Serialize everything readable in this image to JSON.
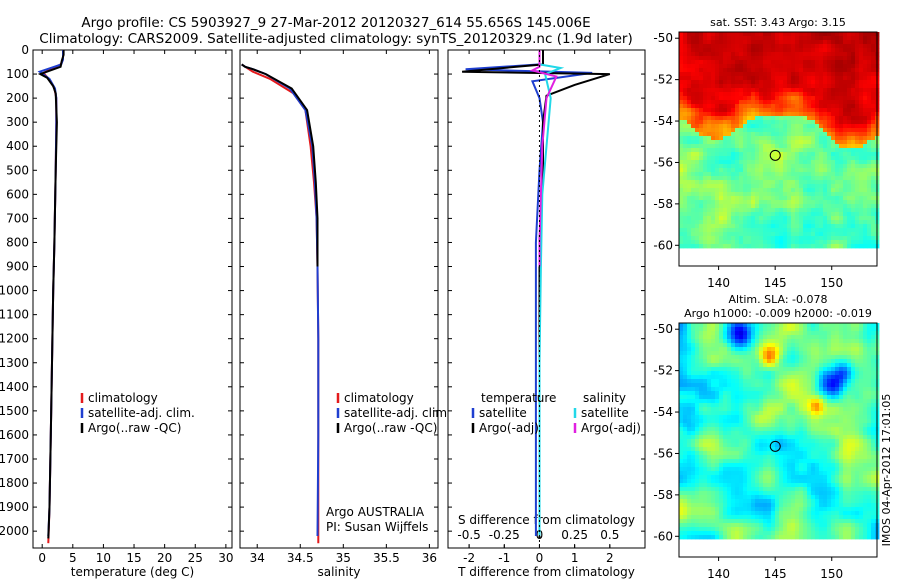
{
  "title": {
    "line1": "Argo profile: CS 5903927_9 27-Mar-2012 20120327_614 55.656S 145.006E",
    "line2": "Climatology: CARS2009. Satellite-adjusted climatology: synTS_20120329.nc (1.9d later)"
  },
  "side_stamp": "IMOS 04-Apr-2012 17:01:05",
  "colors": {
    "climatology": "#e41a1c",
    "satellite": "#1f3fd0",
    "argo": "#000000",
    "sat_salinity": "#22d8e8",
    "argo_salinity": "#e020e0"
  },
  "chart_data": [
    {
      "type": "line",
      "name": "temperature-panel",
      "xlabel": "temperature (deg C)",
      "xlim": [
        -1.5,
        31
      ],
      "ylim": [
        2070,
        0
      ],
      "xticks": [
        0,
        5,
        10,
        15,
        20,
        25,
        30
      ],
      "xtick_labels": [
        "0",
        "5",
        "10",
        "15",
        "20",
        "25",
        "30"
      ],
      "yticks": [
        0,
        100,
        200,
        300,
        400,
        500,
        600,
        700,
        800,
        900,
        1000,
        1100,
        1200,
        1300,
        1400,
        1500,
        1600,
        1700,
        1800,
        1900,
        2000
      ],
      "ytick_labels": [
        "0",
        "100",
        "200",
        "300",
        "400",
        "500",
        "600",
        "700",
        "800",
        "900",
        "1000",
        "1100",
        "1200",
        "1300",
        "1400",
        "1500",
        "1600",
        "1700",
        "1800",
        "1900",
        "2000"
      ],
      "legend": {
        "labels": [
          "climatology",
          "satellite-adj. clim.",
          "Argo(..raw -QC)"
        ],
        "placement": "lower-right"
      },
      "series": [
        {
          "name": "climatology",
          "color_key": "climatology",
          "x": [
            3.4,
            3.4,
            3.0,
            0.2,
            1.4,
            2.0,
            2.3,
            2.3,
            2.2,
            2.0,
            1.8,
            1.6,
            1.4,
            1.2,
            1.0
          ],
          "y": [
            0,
            40,
            60,
            95,
            130,
            160,
            200,
            300,
            500,
            800,
            1000,
            1300,
            1600,
            1900,
            2050
          ]
        },
        {
          "name": "satellite-adj. clim.",
          "color_key": "satellite",
          "x": [
            3.4,
            3.4,
            3.1,
            -0.4,
            1.2,
            2.1,
            2.3,
            2.3,
            2.2,
            2.0,
            1.8,
            1.6,
            1.4,
            1.2,
            1.0
          ],
          "y": [
            0,
            40,
            60,
            90,
            120,
            160,
            200,
            300,
            500,
            800,
            1000,
            1300,
            1600,
            1900,
            2020
          ]
        },
        {
          "name": "Argo(..raw -QC)",
          "color_key": "argo",
          "x": [
            3.5,
            3.5,
            3.2,
            3.0,
            -0.3,
            0.8,
            1.8,
            2.2,
            2.4,
            2.3,
            2.2,
            2.0,
            1.8,
            1.6,
            1.4,
            1.2,
            1.0
          ],
          "y": [
            0,
            20,
            45,
            70,
            100,
            115,
            150,
            180,
            300,
            400,
            500,
            800,
            1000,
            1300,
            1600,
            1900,
            2030
          ]
        }
      ]
    },
    {
      "type": "line",
      "name": "salinity-panel",
      "xlabel": "salinity",
      "xlim": [
        33.8,
        36.1
      ],
      "ylim": [
        2070,
        0
      ],
      "xticks": [
        34,
        34.5,
        35,
        35.5,
        36
      ],
      "xtick_labels": [
        "34",
        "34.5",
        "35",
        "35.5",
        "36"
      ],
      "legend": {
        "labels": [
          "climatology",
          "satellite-adj. clim.",
          "Argo(..raw -QC)"
        ],
        "placement": "lower-right"
      },
      "annotation": [
        "Argo AUSTRALIA",
        "PI: Susan Wijffels"
      ],
      "series": [
        {
          "name": "climatology",
          "color_key": "climatology",
          "x": [
            33.82,
            33.86,
            33.95,
            34.15,
            34.42,
            34.56,
            34.62,
            34.66,
            34.69,
            34.7,
            34.71,
            34.71,
            34.71
          ],
          "y": [
            60,
            70,
            90,
            120,
            180,
            250,
            400,
            550,
            700,
            900,
            1200,
            1600,
            2050
          ]
        },
        {
          "name": "satellite-adj. clim.",
          "color_key": "satellite",
          "x": [
            33.82,
            33.86,
            33.95,
            34.1,
            34.38,
            34.56,
            34.64,
            34.67,
            34.69,
            34.7,
            34.71,
            34.71,
            34.7
          ],
          "y": [
            60,
            70,
            80,
            100,
            160,
            250,
            400,
            550,
            700,
            900,
            1200,
            1600,
            2020
          ]
        },
        {
          "name": "Argo(..raw -QC)",
          "color_key": "argo",
          "x": [
            33.82,
            33.86,
            33.95,
            34.1,
            34.4,
            34.58,
            34.65,
            34.68,
            34.7,
            34.7
          ],
          "y": [
            60,
            70,
            80,
            100,
            160,
            250,
            400,
            550,
            700,
            900
          ]
        }
      ]
    },
    {
      "type": "line",
      "name": "difference-panel",
      "xlabel": "T difference from climatology",
      "x2label": "S difference from climatology",
      "xlim": [
        -2.6,
        3.0
      ],
      "ylim": [
        2070,
        0
      ],
      "xticks": [
        -2,
        -1,
        0,
        1,
        2
      ],
      "xtick_labels": [
        "-2",
        "-1",
        "0",
        "1",
        "2"
      ],
      "x2lim": [
        -0.65,
        0.75
      ],
      "x2ticks": [
        -0.5,
        -0.25,
        0,
        0.25,
        0.5
      ],
      "x2tick_labels": [
        "-0.5",
        "-0.25",
        "0",
        "0.25",
        "0.5"
      ],
      "legend": {
        "temperature_header": "temperature",
        "salinity_header": "salinity",
        "labels": [
          "satellite",
          "Argo(-adj)",
          "satellite",
          "Argo(-adj)"
        ],
        "placement": "lower-center"
      },
      "series": [
        {
          "name": "temperature satellite",
          "color_key": "satellite",
          "x": [
            0.0,
            0.0,
            -2.1,
            1.5,
            -0.2,
            0.0,
            0.1,
            0.0,
            -0.1,
            -0.1,
            -0.1,
            -0.1,
            -0.1
          ],
          "y": [
            0,
            60,
            80,
            95,
            130,
            200,
            300,
            500,
            800,
            1100,
            1400,
            1700,
            2020
          ]
        },
        {
          "name": "temperature Argo(-adj)",
          "color_key": "argo",
          "x": [
            0.1,
            0.1,
            -2.2,
            2.0,
            1.0,
            0.2,
            0.1,
            0.1,
            0.0,
            0.0,
            0.0,
            0.0
          ],
          "y": [
            0,
            60,
            90,
            100,
            145,
            190,
            300,
            500,
            800,
            1200,
            1600,
            2030
          ]
        },
        {
          "name": "salinity satellite",
          "color_key": "sat_salinity",
          "axis": "x2",
          "x": [
            0.0,
            0.0,
            0.15,
            0.04,
            0.08,
            0.05,
            0.02,
            0.01,
            0.0,
            0.0,
            0.0
          ],
          "y": [
            0,
            60,
            75,
            100,
            200,
            400,
            600,
            900,
            1300,
            1700,
            2020
          ]
        },
        {
          "name": "salinity Argo(-adj)",
          "color_key": "argo_salinity",
          "axis": "x2",
          "x": [
            0.0,
            0.0,
            -0.05,
            0.12,
            0.05,
            0.02,
            0.01,
            0.0,
            0.0
          ],
          "y": [
            0,
            70,
            85,
            110,
            200,
            400,
            600,
            800,
            900
          ]
        }
      ]
    },
    {
      "type": "heatmap",
      "name": "sst-map",
      "title": "sat. SST: 3.43 Argo: 3.15",
      "xlim": [
        136.5,
        154
      ],
      "ylim": [
        -61,
        -49.7
      ],
      "xticks": [
        140,
        145,
        150
      ],
      "xtick_labels": [
        "140",
        "145",
        "150"
      ],
      "yticks": [
        -50,
        -52,
        -54,
        -56,
        -58,
        -60
      ],
      "ytick_labels": [
        "-50",
        "-52",
        "-54",
        "-56",
        "-58",
        "-60"
      ],
      "data_extent_lat": [
        -60,
        -49.7
      ],
      "marker": {
        "lon": 145.006,
        "lat": -55.656
      }
    },
    {
      "type": "heatmap",
      "name": "sla-map",
      "title": [
        "Altim. SLA: -0.078",
        "Argo h1000: -0.009 h2000: -0.019"
      ],
      "xlim": [
        136.5,
        154
      ],
      "ylim": [
        -61,
        -49.7
      ],
      "xticks": [
        140,
        145,
        150
      ],
      "xtick_labels": [
        "140",
        "145",
        "150"
      ],
      "yticks": [
        -50,
        -52,
        -54,
        -56,
        -58,
        -60
      ],
      "ytick_labels": [
        "-50",
        "-52",
        "-54",
        "-56",
        "-58",
        "-60"
      ],
      "data_extent_lat": [
        -60,
        -49.7
      ],
      "marker": {
        "lon": 145.006,
        "lat": -55.656
      }
    }
  ]
}
